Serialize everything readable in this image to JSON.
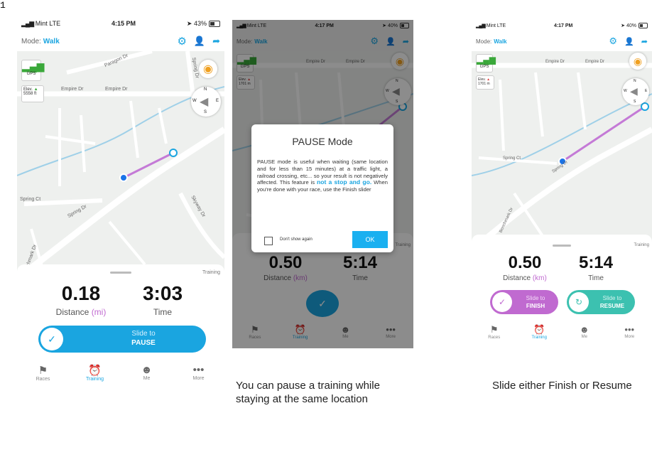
{
  "page_number": "1",
  "screen1": {
    "status": {
      "carrier": "Mint  LTE",
      "time": "4:15 PM",
      "battery": "43%",
      "battery_level": 0.43
    },
    "mode_label": "Mode:",
    "mode_value": "Walk",
    "map": {
      "gps": "GPS",
      "elev_label": "Elev.",
      "elev_value": "5558 ft",
      "streets": [
        "Paragon Dr",
        "Empire Dr",
        "Empire Dr",
        "Spring Dr",
        "Spring Ct",
        "Spring Dr",
        "Skyway Dr",
        "Benchmark Dr"
      ],
      "compass": {
        "n": "N",
        "s": "S",
        "w": "W",
        "e": "E"
      }
    },
    "training_tag": "Training",
    "distance_value": "0.18",
    "distance_label": "Distance",
    "distance_unit": "(mi)",
    "time_value": "3:03",
    "time_label": "Time",
    "slider": {
      "line1": "Slide to",
      "line2": "PAUSE"
    },
    "tabs": [
      "Races",
      "Training",
      "Me",
      "More"
    ]
  },
  "screen2": {
    "status": {
      "carrier": "Mint  LTE",
      "time": "4:17 PM",
      "battery": "40%",
      "battery_level": 0.4
    },
    "mode_label": "Mode:",
    "mode_value": "Walk",
    "map": {
      "gps": "GPS",
      "elev_label": "Elev.",
      "elev_value": "1701 m",
      "streets": [
        "Empire Dr",
        "Empire Dr"
      ],
      "compass": {
        "n": "N",
        "s": "S",
        "w": "W"
      }
    },
    "training_tag": "Training",
    "distance_value": "0.50",
    "distance_label": "Distance",
    "distance_unit": "(km)",
    "time_value": "5:14",
    "time_label": "Time",
    "dialog": {
      "title": "PAUSE Mode",
      "body": "PAUSE mode is useful when waiting (same location and for less than 15 minutes) at a traffic light, a railroad crossing, etc... so your result is not negatively affected. This feature is",
      "highlight": "not a stop and go.",
      "body_end": "When you're done with your race, use the Finish slider",
      "checkbox_label": "Don't show again",
      "ok": "OK"
    },
    "tabs": [
      "Races",
      "Training",
      "Me",
      "More"
    ],
    "caption": [
      "You can pause a training while",
      "staying at the same location"
    ]
  },
  "screen3": {
    "status": {
      "carrier": "Mint  LTE",
      "time": "4:17 PM",
      "battery": "40%",
      "battery_level": 0.4
    },
    "mode_label": "Mode:",
    "mode_value": "Walk",
    "map": {
      "gps": "GPS",
      "elev_label": "Elev.",
      "elev_value": "1701 m",
      "streets": [
        "Empire Dr",
        "Empire Dr",
        "Spring Ct",
        "Spring Dr",
        "Benchmark Dr"
      ],
      "compass": {
        "n": "N",
        "s": "S",
        "w": "W",
        "e": "E"
      }
    },
    "training_tag": "Training",
    "distance_value": "0.50",
    "distance_label": "Distance",
    "distance_unit": "(km)",
    "time_value": "5:14",
    "time_label": "Time",
    "finish_slider": {
      "line1": "Slide to",
      "line2": "FINISH"
    },
    "resume_slider": {
      "line1": "Slide to",
      "line2": "RESUME"
    },
    "tabs": [
      "Races",
      "Training",
      "Me",
      "More"
    ],
    "caption": [
      "Slide either Finish or Resume"
    ]
  },
  "colors": {
    "accent": "#1aa5e0",
    "purple": "#c06ad0",
    "teal": "#3cc1b0",
    "route": "#c47ad6"
  }
}
